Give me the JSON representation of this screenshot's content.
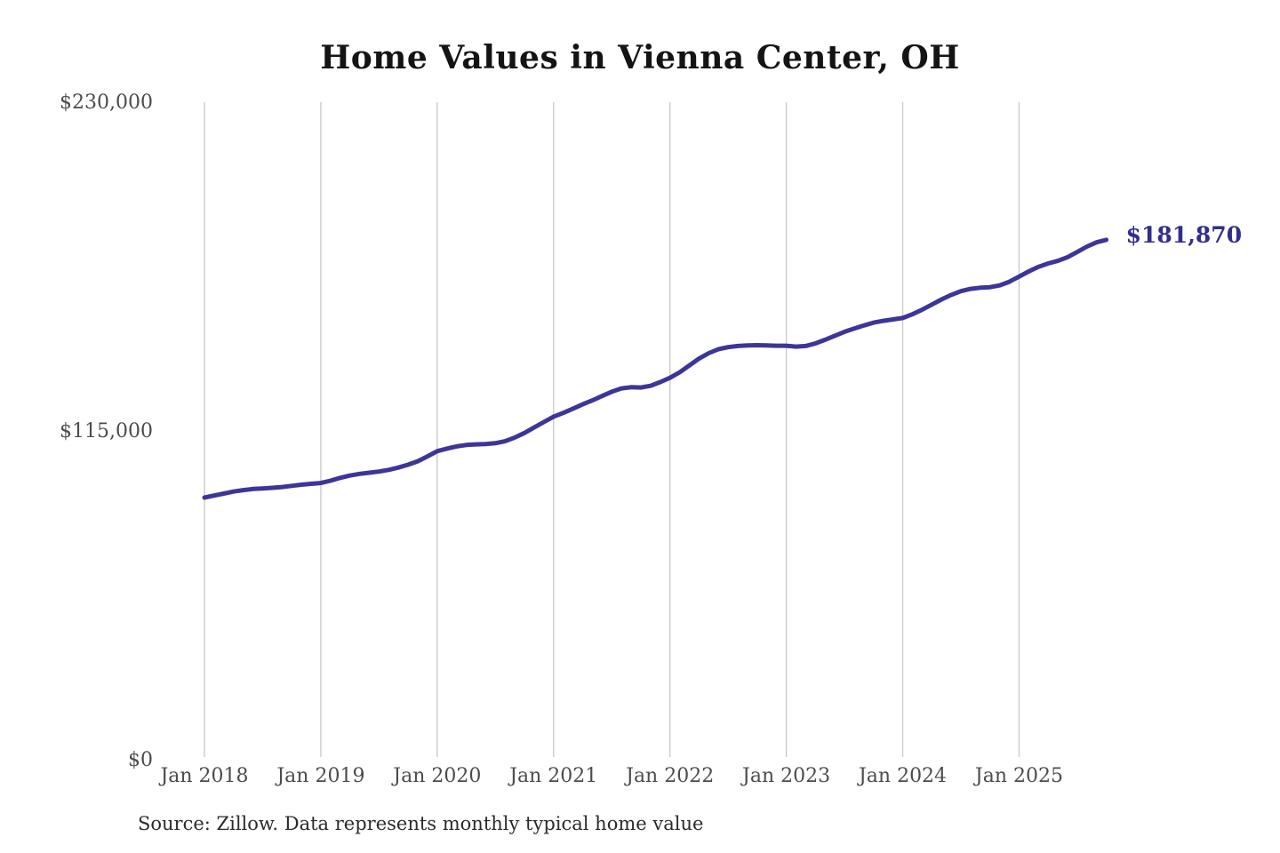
{
  "page": {
    "title": "Home Values in Vienna Center, OH",
    "source_note": "Source: Zillow. Data represents monthly typical home value"
  },
  "chart_data": {
    "type": "line",
    "title": "Home Values in Vienna Center, OH",
    "series_name": "Monthly typical home value",
    "grid": "vertical-only",
    "legend": "none",
    "ylim": [
      0,
      230000
    ],
    "y_ticks": [
      {
        "label": "$0",
        "value": 0
      },
      {
        "label": "$115,000",
        "value": 115000
      },
      {
        "label": "$230,000",
        "value": 230000
      }
    ],
    "x_tick_labels": [
      "Jan 2018",
      "Jan 2019",
      "Jan 2020",
      "Jan 2021",
      "Jan 2022",
      "Jan 2023",
      "Jan 2024",
      "Jan 2025"
    ],
    "end_label": "$181,870",
    "line_color": "#3b3698",
    "end_label_color": "#312e8c",
    "gridline_color": "#cbcbcb",
    "tick_label_color": "#4c4c4c",
    "x": [
      "2018-01",
      "2018-02",
      "2018-03",
      "2018-04",
      "2018-05",
      "2018-06",
      "2018-07",
      "2018-08",
      "2018-09",
      "2018-10",
      "2018-11",
      "2018-12",
      "2019-01",
      "2019-02",
      "2019-03",
      "2019-04",
      "2019-05",
      "2019-06",
      "2019-07",
      "2019-08",
      "2019-09",
      "2019-10",
      "2019-11",
      "2019-12",
      "2020-01",
      "2020-02",
      "2020-03",
      "2020-04",
      "2020-05",
      "2020-06",
      "2020-07",
      "2020-08",
      "2020-09",
      "2020-10",
      "2020-11",
      "2020-12",
      "2021-01",
      "2021-02",
      "2021-03",
      "2021-04",
      "2021-05",
      "2021-06",
      "2021-07",
      "2021-08",
      "2021-09",
      "2021-10",
      "2021-11",
      "2021-12",
      "2022-01",
      "2022-02",
      "2022-03",
      "2022-04",
      "2022-05",
      "2022-06",
      "2022-07",
      "2022-08",
      "2022-09",
      "2022-10",
      "2022-11",
      "2022-12",
      "2023-01",
      "2023-02",
      "2023-03",
      "2023-04",
      "2023-05",
      "2023-06",
      "2023-07",
      "2023-08",
      "2023-09",
      "2023-10",
      "2023-11",
      "2023-12",
      "2024-01",
      "2024-02",
      "2024-03",
      "2024-04",
      "2024-05",
      "2024-06",
      "2024-07",
      "2024-08",
      "2024-09",
      "2024-10",
      "2024-11",
      "2024-12",
      "2025-01",
      "2025-02",
      "2025-03",
      "2025-04",
      "2025-05",
      "2025-06",
      "2025-07",
      "2025-08",
      "2025-09",
      "2025-10"
    ],
    "values": [
      91700,
      92400,
      93100,
      93800,
      94300,
      94700,
      94900,
      95100,
      95400,
      95800,
      96200,
      96500,
      96800,
      97600,
      98600,
      99400,
      100000,
      100400,
      100800,
      101400,
      102200,
      103200,
      104400,
      106100,
      107900,
      108800,
      109600,
      110100,
      110300,
      110400,
      110700,
      111400,
      112700,
      114300,
      116200,
      118100,
      120000,
      121300,
      122800,
      124300,
      125700,
      127200,
      128700,
      129900,
      130300,
      130200,
      130800,
      132100,
      133600,
      135500,
      137900,
      140300,
      142200,
      143600,
      144300,
      144700,
      144900,
      145000,
      144900,
      144800,
      144800,
      144500,
      144700,
      145600,
      146900,
      148300,
      149700,
      150800,
      151900,
      152900,
      153500,
      154000,
      154500,
      155800,
      157400,
      159200,
      161000,
      162600,
      163900,
      164700,
      165100,
      165300,
      165900,
      167200,
      169000,
      170800,
      172400,
      173600,
      174500,
      175800,
      177600,
      179500,
      181000,
      181870
    ]
  }
}
